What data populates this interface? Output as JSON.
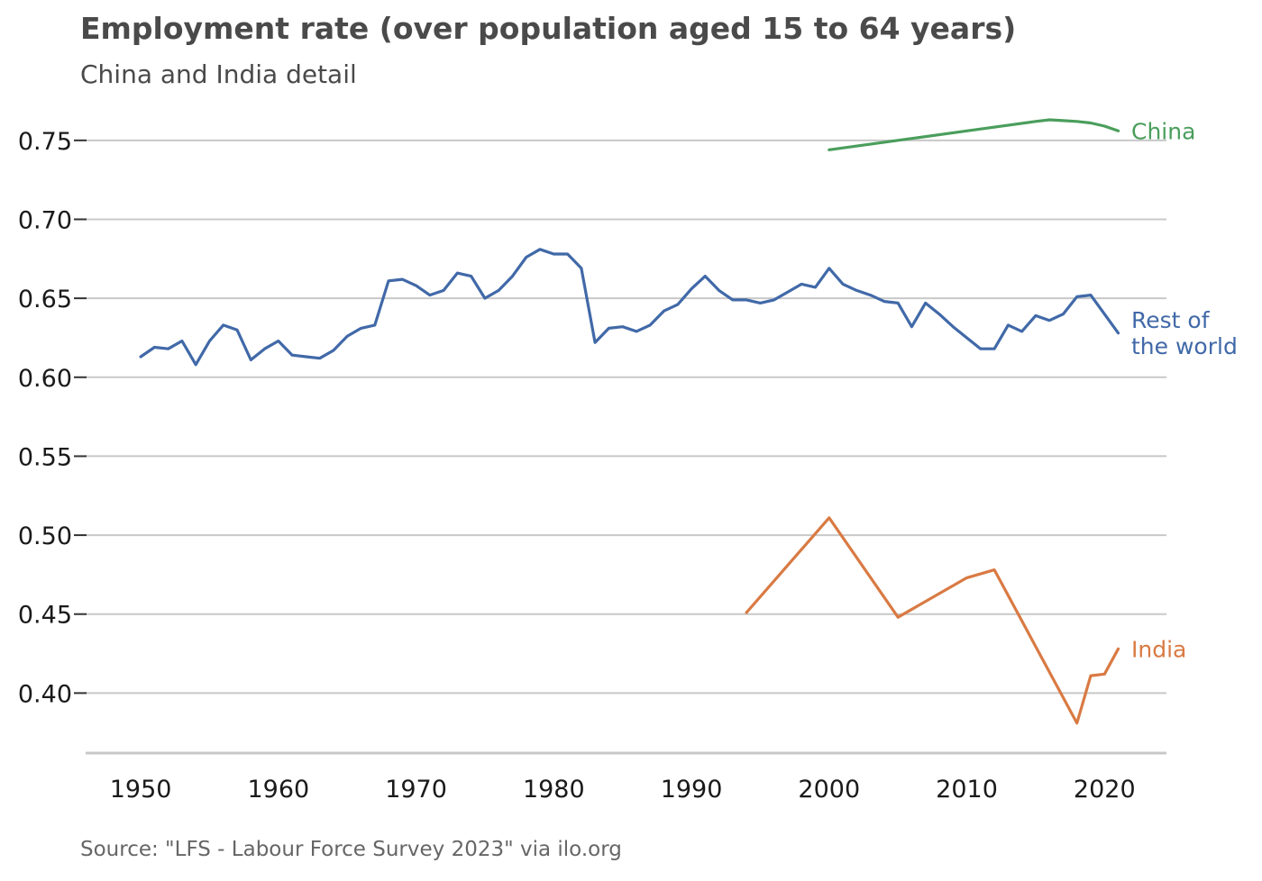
{
  "title": "Employment rate (over population aged 15 to 64 years)",
  "subtitle": "China and India detail",
  "source": "Source: \"LFS - Labour Force Survey 2023\" via ilo.org",
  "chart_data": {
    "type": "line",
    "title": "Employment rate (over population aged 15 to 64 years)",
    "subtitle": "China and India detail",
    "xlabel": "",
    "ylabel": "",
    "xlim": [
      1946,
      2024.5
    ],
    "ylim": [
      0.362,
      0.775
    ],
    "xticks": [
      1950,
      1960,
      1970,
      1980,
      1990,
      2000,
      2010,
      2020
    ],
    "yticks": [
      0.4,
      0.45,
      0.5,
      0.55,
      0.6,
      0.65,
      0.7,
      0.75
    ],
    "ytick_labels": [
      "0.40",
      "0.45",
      "0.50",
      "0.55",
      "0.60",
      "0.65",
      "0.70",
      "0.75"
    ],
    "grid": "horizontal",
    "legend": "inline labels at line ends",
    "series": [
      {
        "name": "China",
        "label_lines": [
          "China"
        ],
        "color": "#4a9e5c",
        "x": [
          2000,
          2005,
          2010,
          2015,
          2016,
          2017,
          2018,
          2019,
          2020,
          2021
        ],
        "y": [
          0.744,
          0.75,
          0.756,
          0.762,
          0.763,
          0.7625,
          0.762,
          0.761,
          0.759,
          0.756
        ]
      },
      {
        "name": "Rest of the world",
        "label_lines": [
          "Rest of",
          "the world"
        ],
        "color": "#4169a8",
        "x": [
          1950,
          1951,
          1952,
          1953,
          1954,
          1955,
          1956,
          1957,
          1958,
          1959,
          1960,
          1961,
          1962,
          1963,
          1964,
          1965,
          1966,
          1967,
          1968,
          1969,
          1970,
          1971,
          1972,
          1973,
          1974,
          1975,
          1976,
          1977,
          1978,
          1979,
          1980,
          1981,
          1982,
          1983,
          1984,
          1985,
          1986,
          1987,
          1988,
          1989,
          1990,
          1991,
          1992,
          1993,
          1994,
          1995,
          1996,
          1997,
          1998,
          1999,
          2000,
          2001,
          2002,
          2003,
          2004,
          2005,
          2006,
          2007,
          2008,
          2009,
          2010,
          2011,
          2012,
          2013,
          2014,
          2015,
          2016,
          2017,
          2018,
          2019,
          2020,
          2021
        ],
        "y": [
          0.613,
          0.619,
          0.618,
          0.623,
          0.608,
          0.623,
          0.633,
          0.63,
          0.611,
          0.618,
          0.623,
          0.614,
          0.613,
          0.612,
          0.617,
          0.626,
          0.631,
          0.633,
          0.661,
          0.662,
          0.658,
          0.652,
          0.655,
          0.666,
          0.664,
          0.65,
          0.655,
          0.664,
          0.676,
          0.681,
          0.678,
          0.678,
          0.669,
          0.622,
          0.631,
          0.632,
          0.629,
          0.633,
          0.642,
          0.646,
          0.656,
          0.664,
          0.655,
          0.649,
          0.649,
          0.647,
          0.649,
          0.654,
          0.659,
          0.657,
          0.669,
          0.659,
          0.655,
          0.652,
          0.648,
          0.647,
          0.632,
          0.647,
          0.64,
          0.632,
          0.625,
          0.618,
          0.618,
          0.633,
          0.629,
          0.639,
          0.636,
          0.64,
          0.651,
          0.652,
          0.64,
          0.628
        ]
      },
      {
        "name": "India",
        "label_lines": [
          "India"
        ],
        "color": "#d97a43",
        "x": [
          1994,
          2000,
          2005,
          2010,
          2012,
          2018,
          2019,
          2020,
          2021
        ],
        "y": [
          0.451,
          0.511,
          0.448,
          0.473,
          0.478,
          0.381,
          0.411,
          0.412,
          0.428
        ]
      }
    ]
  }
}
